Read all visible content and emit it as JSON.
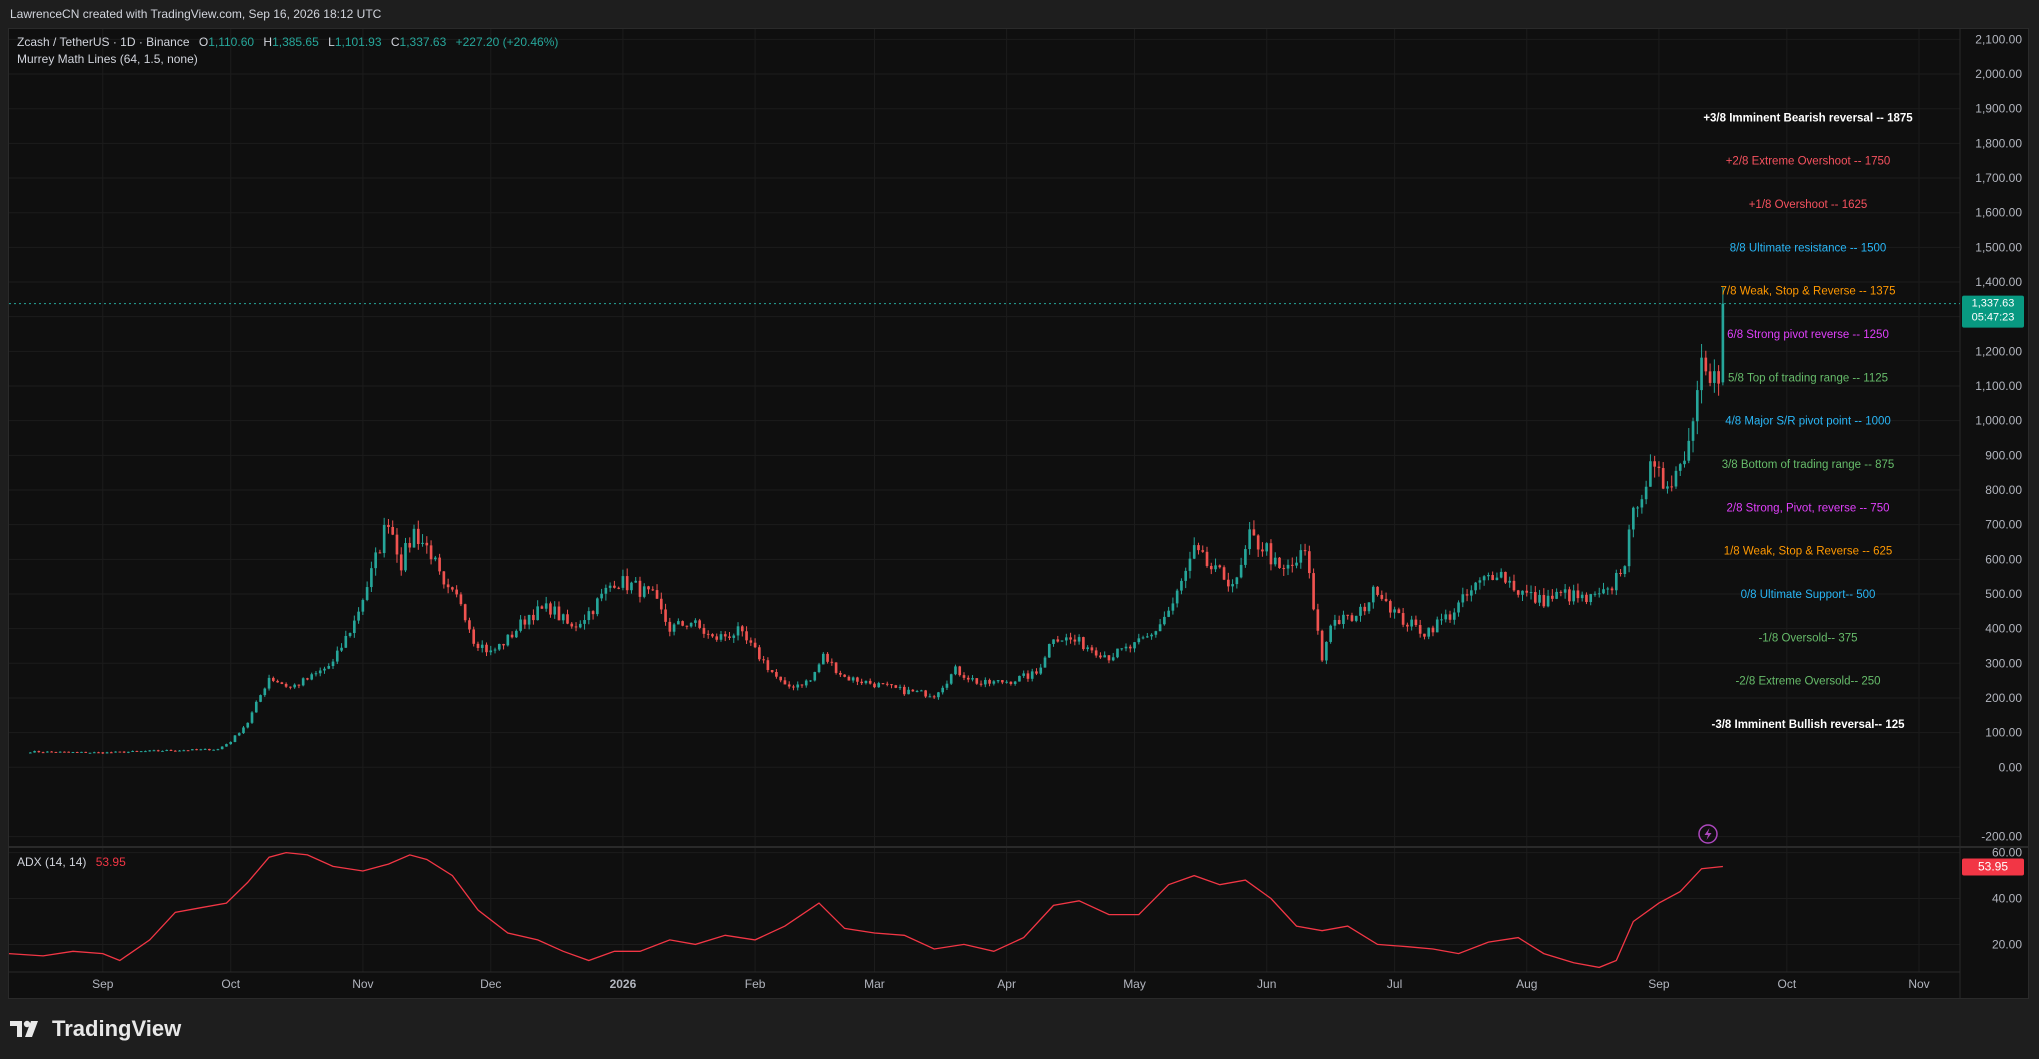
{
  "header": {
    "credit": "LawrenceCN created with TradingView.com, Sep 16, 2026 18:12 UTC"
  },
  "legend": {
    "symbol": "Zcash / TetherUS · 1D · Binance",
    "o_label": "O",
    "o_value": "1,110.60",
    "h_label": "H",
    "h_value": "1,385.65",
    "l_label": "L",
    "l_value": "1,101.93",
    "c_label": "C",
    "c_value": "1,337.63",
    "change": "+227.20 (+20.46%)",
    "indicator": "Murrey Math Lines (64, 1.5, none)"
  },
  "price_badge": {
    "price": "1,337.63",
    "countdown": "05:47:23"
  },
  "adx": {
    "label": "ADX (14, 14)",
    "value": "53.95",
    "badge": "53.95"
  },
  "footer": {
    "brand": "TradingView"
  },
  "colors": {
    "up": "#26a69a",
    "down": "#ef5350",
    "adx": "#f23645",
    "bg": "#0f0f0f",
    "bearish_rev": "#ffffff",
    "overshoot": "#f7525f",
    "ultimate_res": "#29b6f6",
    "weak": "#ff9800",
    "strong": "#e040fb",
    "range": "#66bb6a",
    "pivot": "#29b6f6"
  },
  "chart_data": [
    {
      "type": "candlestick",
      "title": "Zcash / TetherUS · 1D · Binance",
      "x_tick_labels": [
        "Sep",
        "Oct",
        "Nov",
        "Dec",
        "2026",
        "Feb",
        "Mar",
        "Apr",
        "May",
        "Jun",
        "Jul",
        "Aug",
        "Sep",
        "Oct",
        "Nov"
      ],
      "y_tick_labels": [
        "2,100.00",
        "2,000.00",
        "1,900.00",
        "1,800.00",
        "1,700.00",
        "1,600.00",
        "1,500.00",
        "1,400.00",
        "1,300.00",
        "1,200.00",
        "1,100.00",
        "1,000.00",
        "900.00",
        "800.00",
        "700.00",
        "600.00",
        "500.00",
        "400.00",
        "300.00",
        "200.00",
        "100.00",
        "0.00",
        "-200.00"
      ],
      "ylim": [
        -230,
        2130
      ],
      "grid": true,
      "close_path": [
        [
          "2025-08-15",
          45
        ],
        [
          "2025-09-01",
          42
        ],
        [
          "2025-09-15",
          48
        ],
        [
          "2025-09-28",
          52
        ],
        [
          "2025-10-01",
          75
        ],
        [
          "2025-10-05",
          130
        ],
        [
          "2025-10-10",
          260
        ],
        [
          "2025-10-15",
          230
        ],
        [
          "2025-10-20",
          260
        ],
        [
          "2025-10-25",
          300
        ],
        [
          "2025-10-30",
          420
        ],
        [
          "2025-11-03",
          560
        ],
        [
          "2025-11-07",
          720
        ],
        [
          "2025-11-10",
          590
        ],
        [
          "2025-11-13",
          680
        ],
        [
          "2025-11-17",
          620
        ],
        [
          "2025-11-20",
          510
        ],
        [
          "2025-11-24",
          480
        ],
        [
          "2025-11-27",
          370
        ],
        [
          "2025-12-01",
          330
        ],
        [
          "2025-12-05",
          370
        ],
        [
          "2025-12-10",
          440
        ],
        [
          "2025-12-15",
          460
        ],
        [
          "2025-12-20",
          400
        ],
        [
          "2025-12-25",
          460
        ],
        [
          "2025-12-30",
          540
        ],
        [
          "2026-01-04",
          520
        ],
        [
          "2026-01-08",
          490
        ],
        [
          "2026-01-12",
          400
        ],
        [
          "2026-01-17",
          420
        ],
        [
          "2026-01-22",
          370
        ],
        [
          "2026-01-28",
          390
        ],
        [
          "2026-02-02",
          320
        ],
        [
          "2026-02-08",
          230
        ],
        [
          "2026-02-14",
          250
        ],
        [
          "2026-02-17",
          320
        ],
        [
          "2026-02-22",
          260
        ],
        [
          "2026-03-01",
          240
        ],
        [
          "2026-03-08",
          220
        ],
        [
          "2026-03-15",
          210
        ],
        [
          "2026-03-20",
          280
        ],
        [
          "2026-03-26",
          240
        ],
        [
          "2026-04-02",
          250
        ],
        [
          "2026-04-08",
          270
        ],
        [
          "2026-04-12",
          380
        ],
        [
          "2026-04-18",
          360
        ],
        [
          "2026-04-25",
          320
        ],
        [
          "2026-05-01",
          350
        ],
        [
          "2026-05-05",
          380
        ],
        [
          "2026-05-10",
          470
        ],
        [
          "2026-05-15",
          620
        ],
        [
          "2026-05-20",
          560
        ],
        [
          "2026-05-25",
          530
        ],
        [
          "2026-05-28",
          660
        ],
        [
          "2026-06-01",
          630
        ],
        [
          "2026-06-04",
          560
        ],
        [
          "2026-06-07",
          580
        ],
        [
          "2026-06-10",
          620
        ],
        [
          "2026-06-14",
          310
        ],
        [
          "2026-06-16",
          420
        ],
        [
          "2026-06-22",
          430
        ],
        [
          "2026-06-27",
          520
        ],
        [
          "2026-07-02",
          430
        ],
        [
          "2026-07-08",
          390
        ],
        [
          "2026-07-14",
          440
        ],
        [
          "2026-07-20",
          520
        ],
        [
          "2026-07-25",
          570
        ],
        [
          "2026-07-30",
          510
        ],
        [
          "2026-08-04",
          480
        ],
        [
          "2026-08-10",
          500
        ],
        [
          "2026-08-15",
          480
        ],
        [
          "2026-08-20",
          500
        ],
        [
          "2026-08-24",
          600
        ],
        [
          "2026-08-27",
          780
        ],
        [
          "2026-08-30",
          850
        ],
        [
          "2026-09-02",
          820
        ],
        [
          "2026-09-06",
          870
        ],
        [
          "2026-09-09",
          1000
        ],
        [
          "2026-09-11",
          1230
        ],
        [
          "2026-09-13",
          1150
        ],
        [
          "2026-09-15",
          1110
        ],
        [
          "2026-09-16",
          1337.63
        ]
      ],
      "last": {
        "open": 1110.6,
        "high": 1385.65,
        "low": 1101.93,
        "close": 1337.63,
        "change": "+227.20 (+20.46%)"
      }
    },
    {
      "type": "line",
      "name": "Murrey Math Lines",
      "levels": [
        {
          "text": "+3/8 Imminent Bearish reversal --  1875",
          "value": 1875,
          "color": "#ffffff"
        },
        {
          "text": "+2/8 Extreme Overshoot --  1750",
          "value": 1750,
          "color": "#f7525f"
        },
        {
          "text": "+1/8 Overshoot --  1625",
          "value": 1625,
          "color": "#f7525f"
        },
        {
          "text": "8/8 Ultimate resistance --  1500",
          "value": 1500,
          "color": "#29b6f6"
        },
        {
          "text": "7/8 Weak, Stop & Reverse --  1375",
          "value": 1375,
          "color": "#ff9800"
        },
        {
          "text": "6/8 Strong pivot reverse --  1250",
          "value": 1250,
          "color": "#e040fb"
        },
        {
          "text": "5/8 Top of trading range --  1125",
          "value": 1125,
          "color": "#66bb6a"
        },
        {
          "text": "4/8 Major S/R pivot point --  1000",
          "value": 1000,
          "color": "#29b6f6"
        },
        {
          "text": "3/8 Bottom of trading range --  875",
          "value": 875,
          "color": "#66bb6a"
        },
        {
          "text": "2/8 Strong, Pivot, reverse --  750",
          "value": 750,
          "color": "#e040fb"
        },
        {
          "text": "1/8 Weak, Stop & Reverse --  625",
          "value": 625,
          "color": "#ff9800"
        },
        {
          "text": "0/8 Ultimate Support--  500",
          "value": 500,
          "color": "#29b6f6"
        },
        {
          "text": "-1/8 Oversold--  375",
          "value": 375,
          "color": "#66bb6a"
        },
        {
          "text": "-2/8 Extreme Oversold--  250",
          "value": 250,
          "color": "#66bb6a"
        },
        {
          "text": "-3/8 Imminent Bullish reversal--  125",
          "value": 125,
          "color": "#ffffff"
        }
      ]
    },
    {
      "type": "line",
      "title": "ADX (14, 14)",
      "y_tick_labels": [
        "60.00",
        "40.00",
        "20.00"
      ],
      "ylim": [
        8,
        62
      ],
      "last_value": 53.95,
      "series": [
        {
          "name": "ADX",
          "points": [
            [
              "2025-08-10",
              16
            ],
            [
              "2025-08-18",
              15
            ],
            [
              "2025-08-25",
              17
            ],
            [
              "2025-09-01",
              16
            ],
            [
              "2025-09-05",
              13
            ],
            [
              "2025-09-12",
              22
            ],
            [
              "2025-09-18",
              34
            ],
            [
              "2025-09-24",
              36
            ],
            [
              "2025-09-30",
              38
            ],
            [
              "2025-10-05",
              47
            ],
            [
              "2025-10-10",
              58
            ],
            [
              "2025-10-14",
              60
            ],
            [
              "2025-10-19",
              59
            ],
            [
              "2025-10-25",
              54
            ],
            [
              "2025-11-01",
              52
            ],
            [
              "2025-11-07",
              55
            ],
            [
              "2025-11-12",
              59
            ],
            [
              "2025-11-16",
              57
            ],
            [
              "2025-11-22",
              50
            ],
            [
              "2025-11-28",
              35
            ],
            [
              "2025-12-05",
              25
            ],
            [
              "2025-12-12",
              22
            ],
            [
              "2025-12-18",
              17
            ],
            [
              "2025-12-24",
              13
            ],
            [
              "2025-12-30",
              17
            ],
            [
              "2026-01-05",
              17
            ],
            [
              "2026-01-12",
              22
            ],
            [
              "2026-01-18",
              20
            ],
            [
              "2026-01-25",
              24
            ],
            [
              "2026-02-01",
              22
            ],
            [
              "2026-02-08",
              28
            ],
            [
              "2026-02-16",
              38
            ],
            [
              "2026-02-22",
              27
            ],
            [
              "2026-03-01",
              25
            ],
            [
              "2026-03-08",
              24
            ],
            [
              "2026-03-15",
              18
            ],
            [
              "2026-03-22",
              20
            ],
            [
              "2026-03-29",
              17
            ],
            [
              "2026-04-05",
              23
            ],
            [
              "2026-04-12",
              37
            ],
            [
              "2026-04-18",
              39
            ],
            [
              "2026-04-25",
              33
            ],
            [
              "2026-05-02",
              33
            ],
            [
              "2026-05-09",
              46
            ],
            [
              "2026-05-15",
              50
            ],
            [
              "2026-05-21",
              46
            ],
            [
              "2026-05-27",
              48
            ],
            [
              "2026-06-02",
              40
            ],
            [
              "2026-06-08",
              28
            ],
            [
              "2026-06-14",
              26
            ],
            [
              "2026-06-20",
              28
            ],
            [
              "2026-06-27",
              20
            ],
            [
              "2026-07-04",
              19
            ],
            [
              "2026-07-10",
              18
            ],
            [
              "2026-07-16",
              16
            ],
            [
              "2026-07-23",
              21
            ],
            [
              "2026-07-30",
              23
            ],
            [
              "2026-08-05",
              16
            ],
            [
              "2026-08-12",
              12
            ],
            [
              "2026-08-18",
              10
            ],
            [
              "2026-08-22",
              13
            ],
            [
              "2026-08-26",
              30
            ],
            [
              "2026-09-01",
              38
            ],
            [
              "2026-09-06",
              43
            ],
            [
              "2026-09-11",
              53
            ],
            [
              "2026-09-16",
              53.95
            ]
          ]
        }
      ]
    }
  ]
}
